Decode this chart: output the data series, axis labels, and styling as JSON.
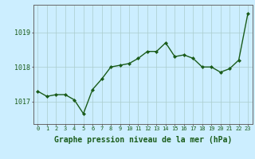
{
  "x": [
    0,
    1,
    2,
    3,
    4,
    5,
    6,
    7,
    8,
    9,
    10,
    11,
    12,
    13,
    14,
    15,
    16,
    17,
    18,
    19,
    20,
    21,
    22,
    23
  ],
  "y": [
    1017.3,
    1017.15,
    1017.2,
    1017.2,
    1017.05,
    1016.65,
    1017.35,
    1017.65,
    1018.0,
    1018.05,
    1018.1,
    1018.25,
    1018.45,
    1018.45,
    1018.7,
    1018.3,
    1018.35,
    1018.25,
    1018.0,
    1018.0,
    1017.85,
    1017.95,
    1018.2,
    1019.55
  ],
  "line_color": "#1a5c1a",
  "marker": "D",
  "marker_size": 2.0,
  "bg_color": "#cceeff",
  "grid_color": "#aacccc",
  "xlabel": "Graphe pression niveau de la mer (hPa)",
  "xlabel_fontsize": 7,
  "yticks": [
    1017,
    1018,
    1019
  ],
  "xtick_labels": [
    "0",
    "1",
    "2",
    "3",
    "4",
    "5",
    "6",
    "7",
    "8",
    "9",
    "10",
    "11",
    "12",
    "13",
    "14",
    "15",
    "16",
    "17",
    "18",
    "19",
    "20",
    "21",
    "22",
    "23"
  ],
  "ylim": [
    1016.35,
    1019.8
  ],
  "xlim": [
    -0.5,
    23.5
  ],
  "ytick_fontsize": 6,
  "xtick_fontsize": 5,
  "line_width": 1.0,
  "spine_color": "#666666"
}
